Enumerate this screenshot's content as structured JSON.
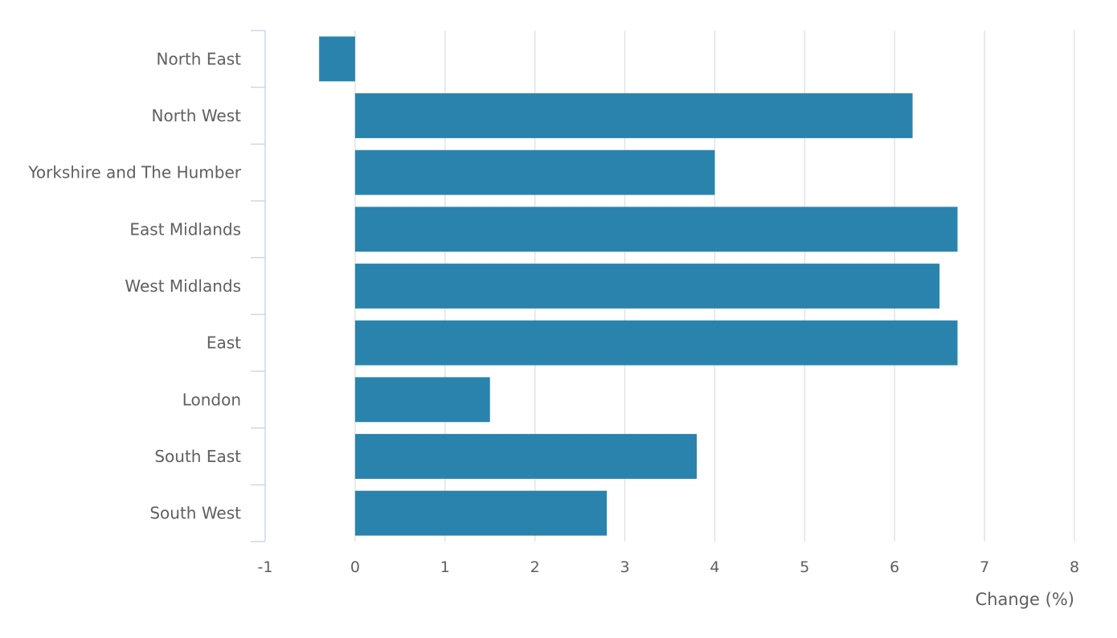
{
  "chart_data": {
    "type": "bar",
    "orientation": "horizontal",
    "categories": [
      "North East",
      "North West",
      "Yorkshire and The Humber",
      "East Midlands",
      "West Midlands",
      "East",
      "London",
      "South East",
      "South West"
    ],
    "values": [
      -0.4,
      6.2,
      4.0,
      6.7,
      6.5,
      6.7,
      1.5,
      3.8,
      2.8
    ],
    "xlabel": "Change (%)",
    "ylabel": "",
    "xlim": [
      -1,
      8
    ],
    "xticks": [
      "-1",
      "0",
      "1",
      "2",
      "3",
      "4",
      "5",
      "6",
      "7",
      "8"
    ],
    "grid": "vertical",
    "bar_color": "#2a83ad"
  }
}
